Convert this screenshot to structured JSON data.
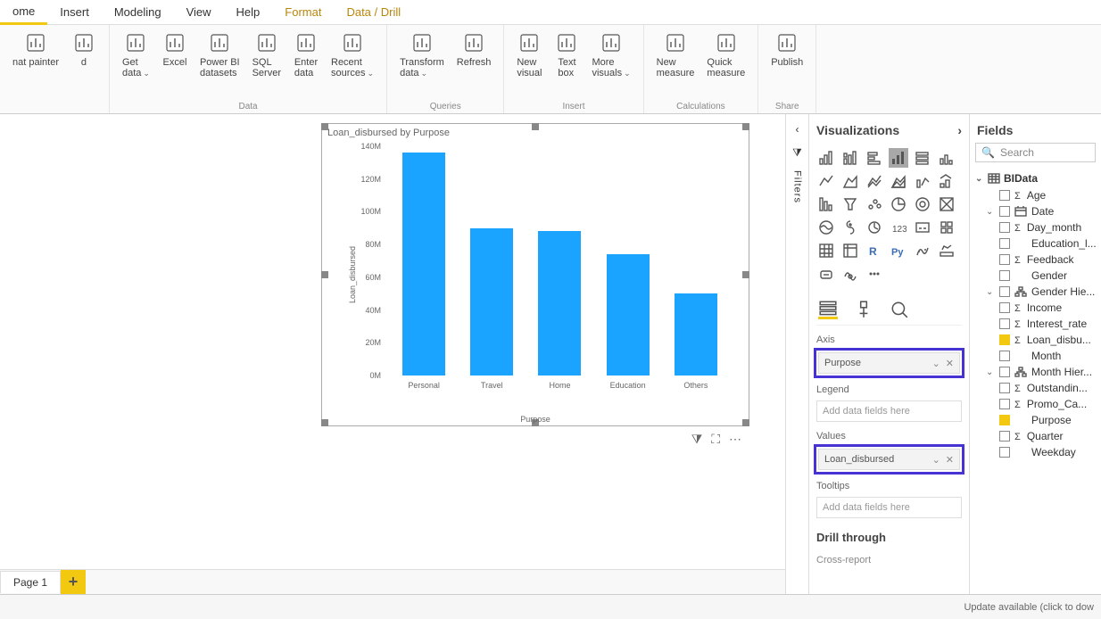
{
  "menu": {
    "items": [
      "ome",
      "Insert",
      "Modeling",
      "View",
      "Help",
      "Format",
      "Data / Drill"
    ],
    "active_index": 0,
    "highlight_indices": [
      5,
      6
    ]
  },
  "ribbon": {
    "groups": [
      {
        "label": "",
        "buttons": [
          {
            "label": "nat painter",
            "dropdown": false
          },
          {
            "label": "d",
            "dropdown": false
          }
        ]
      },
      {
        "label": "Data",
        "buttons": [
          {
            "label": "Get\ndata",
            "dropdown": true
          },
          {
            "label": "Excel",
            "dropdown": false
          },
          {
            "label": "Power BI\ndatasets",
            "dropdown": false
          },
          {
            "label": "SQL\nServer",
            "dropdown": false
          },
          {
            "label": "Enter\ndata",
            "dropdown": false
          },
          {
            "label": "Recent\nsources",
            "dropdown": true
          }
        ]
      },
      {
        "label": "Queries",
        "buttons": [
          {
            "label": "Transform\ndata",
            "dropdown": true
          },
          {
            "label": "Refresh",
            "dropdown": false
          }
        ]
      },
      {
        "label": "Insert",
        "buttons": [
          {
            "label": "New\nvisual",
            "dropdown": false
          },
          {
            "label": "Text\nbox",
            "dropdown": false
          },
          {
            "label": "More\nvisuals",
            "dropdown": true
          }
        ]
      },
      {
        "label": "Calculations",
        "buttons": [
          {
            "label": "New\nmeasure",
            "dropdown": false
          },
          {
            "label": "Quick\nmeasure",
            "dropdown": false
          }
        ]
      },
      {
        "label": "Share",
        "buttons": [
          {
            "label": "Publish",
            "dropdown": false
          }
        ]
      }
    ]
  },
  "page_tabs": {
    "active": "Page 1"
  },
  "chart": {
    "type": "bar",
    "title": "Loan_disbursed by Purpose",
    "y_label": "Loan_disbursed",
    "x_label": "Purpose",
    "categories": [
      "Personal",
      "Travel",
      "Home",
      "Education",
      "Others"
    ],
    "values": [
      136,
      90,
      88,
      74,
      50
    ],
    "ylim": [
      0,
      140
    ],
    "ytick_step": 20,
    "ytick_suffix": "M",
    "bar_color": "#1aa3ff",
    "background_color": "#ffffff",
    "bar_width_pct": 70
  },
  "filters_label": "Filters",
  "viz_pane": {
    "title": "Visualizations",
    "selected_viz_index": 3,
    "wells": {
      "axis_label": "Axis",
      "axis_value": "Purpose",
      "legend_label": "Legend",
      "legend_placeholder": "Add data fields here",
      "values_label": "Values",
      "values_value": "Loan_disbursed",
      "tooltips_label": "Tooltips",
      "tooltips_placeholder": "Add data fields here"
    },
    "drill_label": "Drill through",
    "cross_label": "Cross-report"
  },
  "fields_pane": {
    "title": "Fields",
    "search_placeholder": "Search",
    "table": "BIData",
    "fields": [
      {
        "name": "Age",
        "sigma": true,
        "checked": false,
        "caret": ""
      },
      {
        "name": "Date",
        "sigma": false,
        "checked": false,
        "caret": "v",
        "icon": "date"
      },
      {
        "name": "Day_month",
        "sigma": true,
        "checked": false,
        "caret": ""
      },
      {
        "name": "Education_l...",
        "sigma": false,
        "checked": false,
        "caret": ""
      },
      {
        "name": "Feedback",
        "sigma": true,
        "checked": false,
        "caret": ""
      },
      {
        "name": "Gender",
        "sigma": false,
        "checked": false,
        "caret": ""
      },
      {
        "name": "Gender Hie...",
        "sigma": false,
        "checked": false,
        "caret": "v",
        "icon": "hier"
      },
      {
        "name": "Income",
        "sigma": true,
        "checked": false,
        "caret": ""
      },
      {
        "name": "Interest_rate",
        "sigma": true,
        "checked": false,
        "caret": ""
      },
      {
        "name": "Loan_disbu...",
        "sigma": true,
        "checked": true,
        "caret": ""
      },
      {
        "name": "Month",
        "sigma": false,
        "checked": false,
        "caret": ""
      },
      {
        "name": "Month Hier...",
        "sigma": false,
        "checked": false,
        "caret": "v",
        "icon": "hier"
      },
      {
        "name": "Outstandin...",
        "sigma": true,
        "checked": false,
        "caret": ""
      },
      {
        "name": "Promo_Ca...",
        "sigma": true,
        "checked": false,
        "caret": ""
      },
      {
        "name": "Purpose",
        "sigma": false,
        "checked": true,
        "caret": ""
      },
      {
        "name": "Quarter",
        "sigma": true,
        "checked": false,
        "caret": ""
      },
      {
        "name": "Weekday",
        "sigma": false,
        "checked": false,
        "caret": ""
      }
    ]
  },
  "status_bar": "Update available (click to dow"
}
